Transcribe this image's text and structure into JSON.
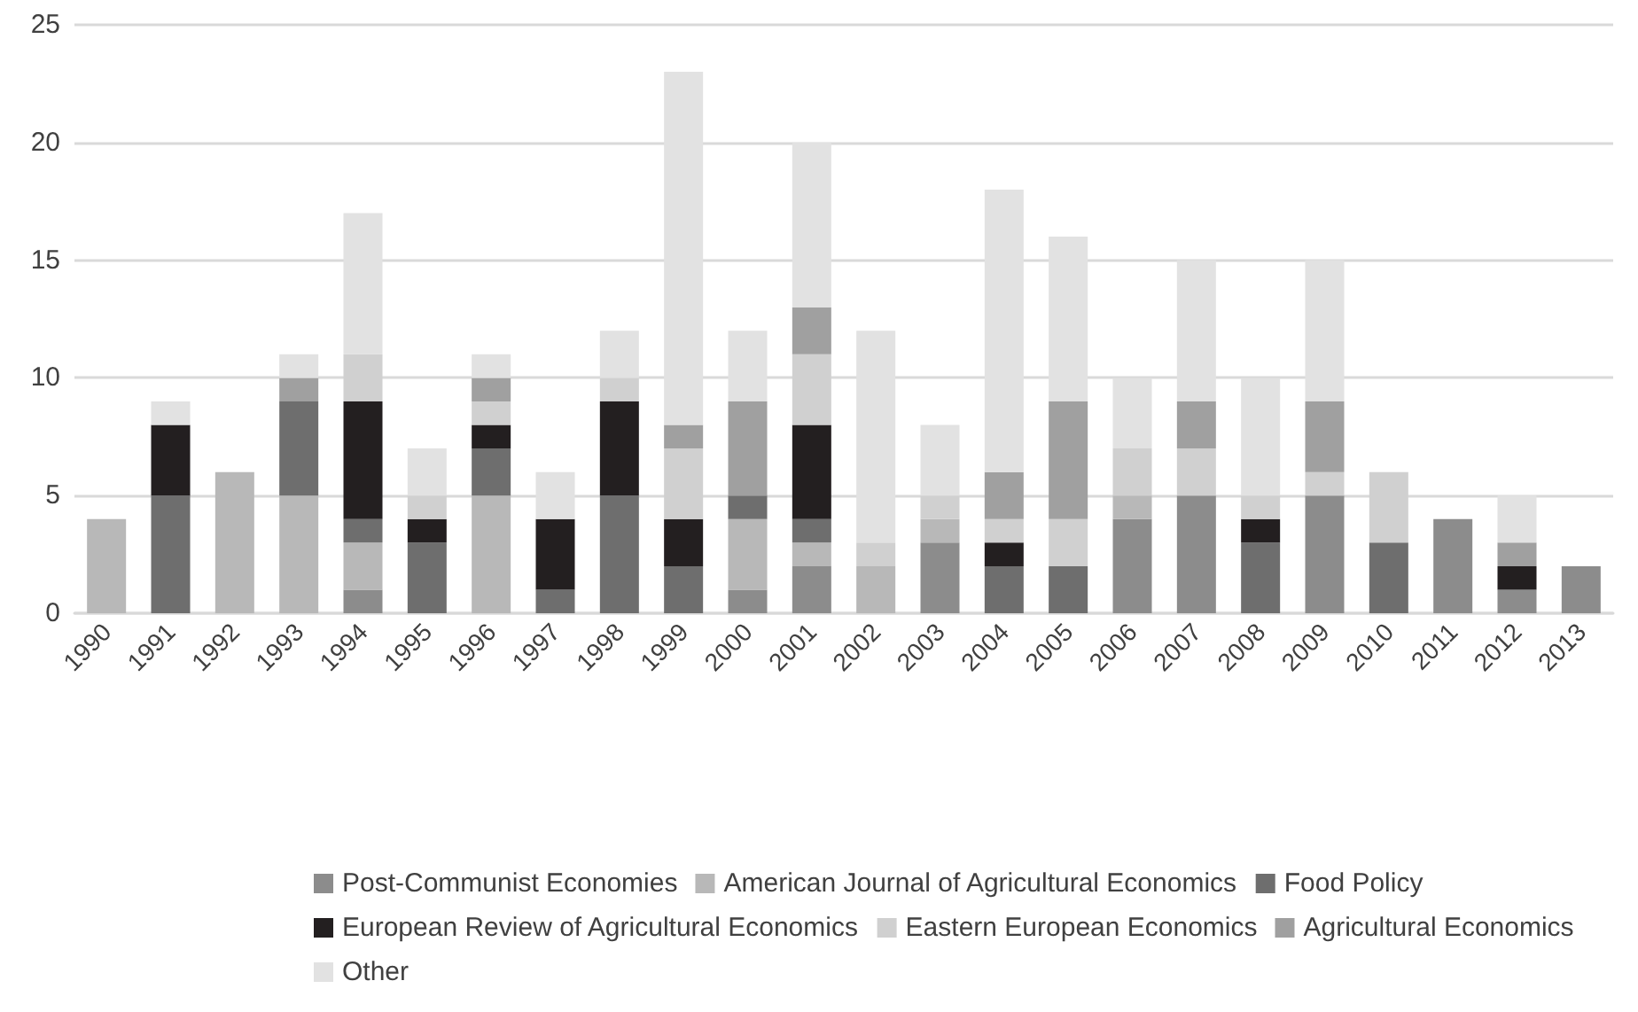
{
  "chart_data": {
    "type": "bar",
    "stacked": true,
    "categories": [
      "1990",
      "1991",
      "1992",
      "1993",
      "1994",
      "1995",
      "1996",
      "1997",
      "1998",
      "1999",
      "2000",
      "2001",
      "2002",
      "2003",
      "2004",
      "2005",
      "2006",
      "2007",
      "2008",
      "2009",
      "2010",
      "2011",
      "2012",
      "2013"
    ],
    "series": [
      {
        "name": "Post-Communist Economies",
        "color": "#8c8c8c",
        "values": [
          0,
          0,
          0,
          0,
          1,
          0,
          0,
          0,
          0,
          0,
          1,
          2,
          0,
          3,
          0,
          0,
          4,
          5,
          0,
          5,
          0,
          4,
          1,
          2
        ]
      },
      {
        "name": "American Journal of Agricultural Economics",
        "color": "#b8b8b8",
        "values": [
          4,
          0,
          6,
          5,
          2,
          0,
          5,
          0,
          0,
          0,
          3,
          1,
          2,
          1,
          0,
          0,
          1,
          0,
          0,
          0,
          0,
          0,
          0,
          0
        ]
      },
      {
        "name": "Food Policy",
        "color": "#6e6e6e",
        "values": [
          0,
          5,
          0,
          4,
          1,
          3,
          2,
          1,
          5,
          2,
          1,
          1,
          0,
          0,
          2,
          2,
          0,
          0,
          3,
          0,
          3,
          0,
          0,
          0
        ]
      },
      {
        "name": "European Review of Agricultural Economics",
        "color": "#231f20",
        "values": [
          0,
          3,
          0,
          0,
          5,
          1,
          1,
          3,
          4,
          2,
          0,
          4,
          0,
          0,
          1,
          0,
          0,
          0,
          1,
          0,
          0,
          0,
          1,
          0
        ]
      },
      {
        "name": "Eastern European Economics",
        "color": "#d0d0d0",
        "values": [
          0,
          0,
          0,
          0,
          2,
          1,
          1,
          0,
          1,
          3,
          0,
          3,
          1,
          1,
          1,
          2,
          2,
          2,
          1,
          1,
          3,
          0,
          0,
          0
        ]
      },
      {
        "name": "Agricultural Economics",
        "color": "#a0a0a0",
        "values": [
          0,
          0,
          0,
          1,
          0,
          0,
          1,
          0,
          0,
          1,
          4,
          2,
          0,
          0,
          2,
          5,
          0,
          2,
          0,
          3,
          0,
          0,
          1,
          0
        ]
      },
      {
        "name": "Other",
        "color": "#e2e2e2",
        "values": [
          0,
          1,
          0,
          1,
          6,
          2,
          1,
          2,
          2,
          15,
          3,
          7,
          9,
          3,
          12,
          7,
          3,
          6,
          5,
          6,
          0,
          0,
          2,
          0
        ]
      }
    ],
    "ylim": [
      0,
      25
    ],
    "yticks": [
      0,
      5,
      10,
      15,
      20,
      25
    ],
    "grid": "y",
    "legend": "bottom"
  }
}
